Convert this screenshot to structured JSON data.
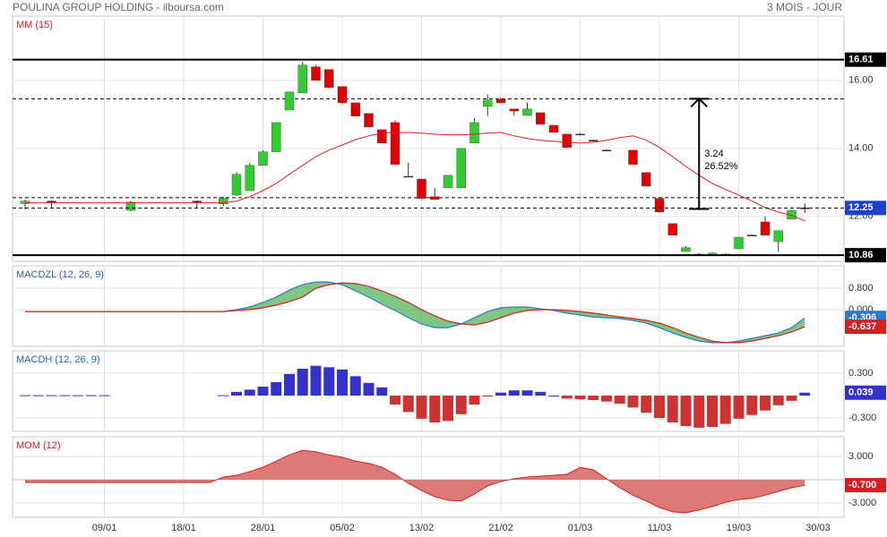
{
  "chart_data": [
    {
      "type": "candlestick",
      "title": "POULINA GROUP HOLDING - ilboursa.com",
      "subtitle": "3 MOIS - JOUR",
      "open": [
        12.38,
        null,
        12.45,
        null,
        null,
        null,
        null,
        null,
        12.18,
        null,
        null,
        null,
        null,
        12.45,
        null,
        12.37,
        12.63,
        12.76,
        13.5,
        13.9,
        15.13,
        15.63,
        16.4,
        16.32,
        15.82,
        15.34,
        15.03,
        14.55,
        14.76,
        13.18,
        13.1,
        12.58,
        12.84,
        12.84,
        14.16,
        15.24,
        15.45,
        15.16,
        14.97,
        15.05,
        14.68,
        14.42,
        14.42,
        14.24,
        13.95,
        null,
        13.95,
        13.29,
        12.53,
        11.79,
        10.97,
        10.89,
        10.86,
        10.89,
        11.05,
        11.45,
        11.84,
        11.26,
        11.92,
        12.25,
        null
      ],
      "high": [
        12.5,
        null,
        12.47,
        null,
        null,
        null,
        null,
        null,
        12.45,
        null,
        null,
        null,
        null,
        12.47,
        null,
        12.58,
        13.3,
        13.58,
        13.95,
        14.76,
        15.66,
        16.55,
        16.45,
        16.32,
        15.82,
        15.34,
        15.03,
        14.55,
        14.82,
        13.58,
        13.1,
        12.84,
        13.21,
        14.0,
        14.89,
        15.58,
        15.5,
        15.16,
        15.34,
        15.05,
        14.68,
        14.42,
        14.45,
        14.26,
        13.97,
        null,
        13.95,
        13.29,
        12.53,
        11.79,
        11.13,
        10.92,
        10.95,
        10.92,
        11.39,
        11.47,
        12.0,
        11.58,
        12.18,
        12.38,
        null
      ],
      "low": [
        12.2,
        null,
        12.25,
        null,
        null,
        null,
        null,
        null,
        12.15,
        null,
        null,
        null,
        null,
        12.25,
        null,
        12.3,
        12.6,
        12.76,
        13.5,
        13.9,
        15.13,
        15.63,
        16.0,
        15.79,
        15.3,
        14.95,
        14.63,
        14.16,
        13.53,
        13.18,
        12.53,
        12.5,
        12.84,
        12.84,
        14.16,
        14.95,
        15.34,
        14.97,
        14.97,
        14.71,
        14.47,
        14.03,
        14.42,
        14.2,
        13.95,
        null,
        13.53,
        12.89,
        12.13,
        11.45,
        10.97,
        10.89,
        10.86,
        10.89,
        11.05,
        11.45,
        11.45,
        10.97,
        11.92,
        12.1,
        null
      ],
      "close": [
        12.45,
        null,
        12.45,
        null,
        null,
        null,
        null,
        null,
        12.42,
        null,
        null,
        null,
        null,
        12.45,
        null,
        12.53,
        13.24,
        13.5,
        13.9,
        14.76,
        15.66,
        16.45,
        16.0,
        15.79,
        15.34,
        14.95,
        14.63,
        14.16,
        13.53,
        13.18,
        12.53,
        12.5,
        13.21,
        14.0,
        14.76,
        15.42,
        15.34,
        15.1,
        15.16,
        14.71,
        14.47,
        14.03,
        14.42,
        14.24,
        13.95,
        null,
        13.53,
        12.89,
        12.13,
        11.45,
        11.08,
        10.89,
        10.92,
        10.89,
        11.39,
        11.45,
        11.45,
        11.58,
        12.18,
        12.25,
        null
      ],
      "up_color": "#33cc33",
      "down_color": "#e00000",
      "doji_color": "#333333",
      "series": [
        {
          "name": "MM (15)",
          "color": "#e02020",
          "values": [
            12.4,
            12.4,
            12.4,
            12.4,
            12.4,
            12.4,
            12.4,
            12.4,
            12.4,
            12.4,
            12.4,
            12.4,
            12.4,
            12.4,
            12.4,
            12.4,
            12.45,
            12.58,
            12.76,
            12.97,
            13.24,
            13.5,
            13.76,
            13.95,
            14.1,
            14.26,
            14.37,
            14.45,
            14.47,
            14.47,
            14.45,
            14.42,
            14.4,
            14.4,
            14.42,
            14.45,
            14.47,
            14.37,
            14.29,
            14.24,
            14.21,
            14.18,
            14.16,
            14.18,
            14.24,
            14.32,
            14.37,
            14.24,
            14.03,
            13.76,
            13.47,
            13.21,
            12.97,
            12.79,
            12.63,
            12.45,
            12.26,
            12.13,
            12.03,
            11.87,
            null
          ]
        }
      ],
      "ylim": [
        10.68,
        17.89
      ],
      "yticks": [
        {
          "value": 16,
          "label": "16.00"
        },
        {
          "value": 14,
          "label": "14.00"
        },
        {
          "value": 12,
          "label": "12.00"
        }
      ],
      "grid": true,
      "levels": [
        {
          "value": 16.61,
          "color": "#000000",
          "dashed": false
        },
        {
          "value": 12.25,
          "color": "#1f3fd0",
          "dashed": true
        },
        {
          "value": 10.86,
          "color": "#000000",
          "dashed": false
        }
      ],
      "reference_lines": [
        15.46,
        12.55
      ],
      "annotation": {
        "from": 12.22,
        "to": 15.46,
        "texts": [
          "3.24",
          "26.52%"
        ]
      }
    },
    {
      "type": "line",
      "title": "MACDZL (12, 26, 9)",
      "title_color": "#1f5fbf",
      "fill_color": "#4caf50",
      "series": [
        {
          "color": "#2a78d0",
          "values": [
            -0.07,
            -0.07,
            -0.07,
            -0.07,
            -0.07,
            -0.07,
            -0.07,
            -0.07,
            -0.07,
            -0.07,
            -0.07,
            -0.07,
            -0.07,
            -0.07,
            -0.07,
            -0.07,
            0.0,
            0.1,
            0.27,
            0.47,
            0.73,
            0.93,
            1.03,
            1.03,
            0.93,
            0.7,
            0.47,
            0.2,
            -0.03,
            -0.3,
            -0.53,
            -0.67,
            -0.67,
            -0.53,
            -0.3,
            -0.07,
            0.07,
            0.1,
            0.1,
            0.03,
            -0.03,
            -0.13,
            -0.2,
            -0.27,
            -0.3,
            -0.33,
            -0.4,
            -0.5,
            -0.67,
            -0.87,
            -1.03,
            -1.17,
            -1.23,
            -1.23,
            -1.17,
            -1.07,
            -0.97,
            -0.87,
            -0.67,
            -0.306,
            null
          ]
        },
        {
          "color": "#d42020",
          "values": [
            -0.07,
            -0.07,
            -0.07,
            -0.07,
            -0.07,
            -0.07,
            -0.07,
            -0.07,
            -0.07,
            -0.07,
            -0.07,
            -0.07,
            -0.07,
            -0.07,
            -0.07,
            -0.07,
            -0.03,
            0.0,
            0.07,
            0.17,
            0.3,
            0.47,
            0.8,
            0.93,
            1.0,
            0.97,
            0.87,
            0.7,
            0.5,
            0.27,
            0.0,
            -0.23,
            -0.43,
            -0.53,
            -0.57,
            -0.47,
            -0.3,
            -0.13,
            -0.03,
            0.0,
            0.0,
            -0.03,
            -0.07,
            -0.13,
            -0.2,
            -0.27,
            -0.33,
            -0.4,
            -0.5,
            -0.67,
            -0.87,
            -1.03,
            -1.17,
            -1.23,
            -1.23,
            -1.17,
            -1.07,
            -0.97,
            -0.83,
            -0.637,
            null
          ]
        }
      ],
      "ylim": [
        -1.367,
        1.633
      ],
      "yticks": [
        {
          "value": 0.8,
          "label": "0.800"
        },
        {
          "value": 0,
          "label": "0.000"
        }
      ]
    },
    {
      "type": "bar",
      "title": "MACDH (12, 26, 9)",
      "title_color": "#1f5fbf",
      "positive_color": "#3333cc",
      "negative_color": "#cc3333",
      "values": [
        0.005,
        0.005,
        0.005,
        0.005,
        0.005,
        0.005,
        0.005,
        null,
        null,
        null,
        null,
        null,
        null,
        null,
        null,
        0.005,
        0.05,
        0.08,
        0.12,
        0.18,
        0.29,
        0.36,
        0.4,
        0.38,
        0.35,
        0.26,
        0.17,
        0.11,
        -0.12,
        -0.22,
        -0.31,
        -0.36,
        -0.34,
        -0.25,
        -0.12,
        -0.01,
        0.04,
        0.07,
        0.07,
        0.05,
        0,
        -0.04,
        -0.05,
        -0.06,
        -0.08,
        -0.11,
        -0.16,
        -0.23,
        -0.3,
        -0.36,
        -0.41,
        -0.43,
        -0.42,
        -0.38,
        -0.31,
        -0.26,
        -0.2,
        -0.13,
        -0.07,
        0.039,
        null
      ],
      "ylim": [
        -0.48,
        0.6
      ],
      "yticks": [
        {
          "value": 0.3,
          "label": "0.300"
        },
        {
          "value": -0.3,
          "label": "-0.300"
        }
      ]
    },
    {
      "type": "area",
      "title": "MOM (12)",
      "title_color": "#d42020",
      "color": "#d42020",
      "fill_color": "#dc7a78",
      "categories": [
        null,
        null,
        null,
        null,
        null,
        null,
        "09/01",
        null,
        null,
        null,
        null,
        null,
        "18/01",
        null,
        null,
        null,
        null,
        null,
        "28/01",
        null,
        null,
        null,
        null,
        null,
        "05/02",
        null,
        null,
        null,
        null,
        null,
        "13/02",
        null,
        null,
        null,
        null,
        null,
        "21/02",
        null,
        null,
        null,
        null,
        null,
        "01/03",
        null,
        null,
        null,
        null,
        null,
        "11/03",
        null,
        null,
        null,
        null,
        null,
        "19/03",
        null,
        null,
        null,
        null,
        null,
        "30/03"
      ],
      "values": [
        -0.35,
        -0.35,
        -0.35,
        -0.35,
        -0.35,
        -0.35,
        -0.35,
        -0.35,
        -0.35,
        -0.35,
        -0.35,
        -0.35,
        -0.35,
        -0.35,
        -0.35,
        0.35,
        0.58,
        1.04,
        1.6,
        2.4,
        3.2,
        3.8,
        3.6,
        3.2,
        2.9,
        2.4,
        2.1,
        1.6,
        0.7,
        -0.46,
        -1.4,
        -2.2,
        -2.65,
        -2.75,
        -1.85,
        -0.8,
        -0.23,
        0.12,
        0.35,
        0.46,
        0.58,
        0.7,
        1.6,
        1.27,
        0.12,
        -1.04,
        -2.0,
        -2.75,
        -3.58,
        -4.15,
        -4.27,
        -3.9,
        -3.46,
        -2.9,
        -2.55,
        -2.4,
        -2.0,
        -1.5,
        -1.04,
        -0.7,
        null
      ],
      "value_labels": [
        null,
        null,
        null,
        null,
        null,
        null,
        null,
        null,
        null,
        null,
        null,
        null,
        null,
        null,
        null,
        null,
        null,
        null,
        null,
        null,
        null,
        null,
        null,
        null,
        null,
        null,
        null,
        null,
        null,
        null,
        null,
        null,
        null,
        null,
        null,
        null,
        null,
        null,
        null,
        null,
        null,
        null,
        null,
        null,
        null,
        null,
        null,
        null,
        null,
        null,
        null,
        null,
        null,
        null,
        null,
        null,
        null,
        null,
        null,
        "-0.700",
        null
      ],
      "ylim": [
        -4.85,
        5.54
      ],
      "yticks": [
        {
          "value": 3,
          "label": "3.000"
        },
        {
          "value": -3,
          "label": "-3.000"
        }
      ]
    }
  ]
}
